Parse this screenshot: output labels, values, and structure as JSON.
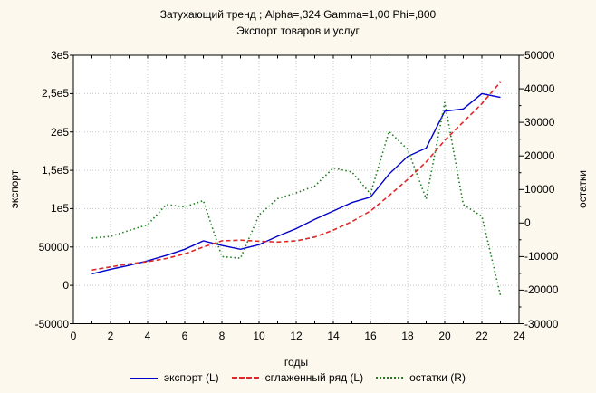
{
  "page": {
    "background": "#fdf8ed",
    "plot_background": "#ffffff",
    "grid_color": "#c8c8c8",
    "frame_color": "#000000"
  },
  "chart_data": {
    "type": "line",
    "title": "Затухающий тренд ; Alpha=,324 Gamma=1,00 Phi=,800",
    "subtitle": "Экспорт товаров и услуг",
    "xlabel": "годы",
    "ylabel_left": "экспорт",
    "ylabel_right": "остатки",
    "xlim": [
      0,
      24
    ],
    "ylim_left": [
      -50000,
      300000
    ],
    "ylim_right": [
      -30000,
      50000
    ],
    "grid": true,
    "legend_position": "bottom",
    "x_tick_values": [
      0,
      2,
      4,
      6,
      8,
      10,
      12,
      14,
      16,
      18,
      20,
      22,
      24
    ],
    "x_tick_labels": [
      "0",
      "2",
      "4",
      "6",
      "8",
      "10",
      "12",
      "14",
      "16",
      "18",
      "20",
      "22",
      "24"
    ],
    "x_minor_tick_step": 1,
    "left_tick_values": [
      300000,
      250000,
      200000,
      150000,
      100000,
      50000,
      0,
      -50000
    ],
    "left_tick_labels": [
      "3e5",
      "2,5e5",
      "2e5",
      "1,5e5",
      "1e5",
      "50000",
      "0",
      "-50000"
    ],
    "right_tick_values": [
      50000,
      40000,
      30000,
      20000,
      10000,
      0,
      -10000,
      -20000,
      -30000
    ],
    "right_tick_labels": [
      "50000",
      "40000",
      "30000",
      "20000",
      "10000",
      "0",
      "-10000",
      "-20000",
      "-30000"
    ],
    "right_minor_tick_step": 5000,
    "x": [
      1,
      2,
      3,
      4,
      5,
      6,
      7,
      8,
      9,
      10,
      11,
      12,
      13,
      14,
      15,
      16,
      17,
      18,
      19,
      20,
      21,
      22,
      23
    ],
    "series": [
      {
        "name": "экспорт (L)",
        "axis": "left",
        "color": "#0000cc",
        "style": "solid",
        "values": [
          15000,
          21000,
          26000,
          32000,
          39000,
          47000,
          58000,
          52000,
          47000,
          53000,
          64000,
          74000,
          86000,
          97000,
          108000,
          115000,
          145000,
          168000,
          179000,
          227000,
          230000,
          250000,
          245000
        ]
      },
      {
        "name": "сглаженный ряд (L)",
        "axis": "left",
        "color": "#e02828",
        "style": "dashed",
        "values": [
          20000,
          24000,
          28000,
          31000,
          35000,
          41000,
          50000,
          58000,
          59000,
          57500,
          56500,
          58000,
          63000,
          72000,
          83000,
          97000,
          117000,
          138000,
          161000,
          189000,
          213000,
          237000,
          265000
        ]
      },
      {
        "name": "остатки (R)",
        "axis": "right",
        "color": "#1e7d1e",
        "style": "dotted",
        "values": [
          -4500,
          -4000,
          -2200,
          -500,
          5500,
          4800,
          6700,
          -10000,
          -10500,
          2400,
          7300,
          9000,
          11000,
          16400,
          15200,
          8700,
          27300,
          22000,
          7200,
          36000,
          5500,
          2000,
          -21500
        ]
      }
    ]
  }
}
